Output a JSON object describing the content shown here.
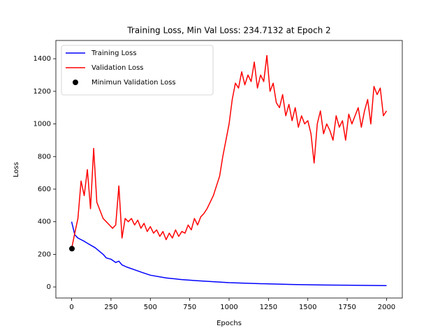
{
  "chart_data": {
    "type": "line",
    "title": "Training Loss, Min Val Loss: 234.7132 at Epoch 2",
    "xlabel": "Epochs",
    "ylabel": "Loss",
    "xlim": [
      -100,
      2100
    ],
    "ylim": [
      -68,
      1512
    ],
    "xticks": [
      0,
      250,
      500,
      750,
      1000,
      1250,
      1500,
      1750,
      2000
    ],
    "yticks": [
      0,
      200,
      400,
      600,
      800,
      1000,
      1200,
      1400
    ],
    "legend": "upper left",
    "series": [
      {
        "name": "Training Loss",
        "kind": "line",
        "color": "#0000ff",
        "x": [
          0,
          20,
          40,
          60,
          80,
          100,
          150,
          200,
          220,
          250,
          280,
          300,
          320,
          350,
          400,
          450,
          500,
          600,
          700,
          800,
          900,
          1000,
          1200,
          1400,
          1600,
          1800,
          2000
        ],
        "values": [
          400,
          320,
          300,
          290,
          280,
          268,
          240,
          200,
          178,
          170,
          150,
          158,
          135,
          122,
          105,
          88,
          72,
          55,
          45,
          38,
          32,
          26,
          20,
          15,
          12,
          10,
          8
        ]
      },
      {
        "name": "Validation Loss",
        "kind": "line",
        "color": "#ff0000",
        "x": [
          0,
          20,
          40,
          60,
          80,
          100,
          120,
          140,
          160,
          180,
          200,
          220,
          240,
          260,
          280,
          300,
          320,
          340,
          360,
          380,
          400,
          420,
          440,
          460,
          480,
          500,
          520,
          540,
          560,
          580,
          600,
          620,
          640,
          660,
          680,
          700,
          720,
          740,
          760,
          780,
          800,
          820,
          840,
          860,
          880,
          900,
          920,
          940,
          960,
          980,
          1000,
          1020,
          1040,
          1060,
          1080,
          1100,
          1120,
          1140,
          1160,
          1180,
          1200,
          1220,
          1240,
          1260,
          1280,
          1300,
          1320,
          1340,
          1360,
          1380,
          1400,
          1420,
          1440,
          1460,
          1480,
          1500,
          1520,
          1540,
          1560,
          1580,
          1600,
          1620,
          1640,
          1660,
          1680,
          1700,
          1720,
          1740,
          1760,
          1780,
          1800,
          1820,
          1840,
          1860,
          1880,
          1900,
          1920,
          1940,
          1960,
          1980,
          2000
        ],
        "values": [
          234,
          330,
          420,
          650,
          560,
          720,
          480,
          850,
          520,
          470,
          420,
          400,
          380,
          360,
          380,
          620,
          300,
          420,
          400,
          420,
          380,
          410,
          360,
          390,
          340,
          370,
          330,
          350,
          310,
          340,
          290,
          330,
          300,
          350,
          310,
          340,
          330,
          380,
          350,
          420,
          380,
          430,
          450,
          480,
          520,
          560,
          620,
          680,
          800,
          900,
          1000,
          1150,
          1250,
          1220,
          1320,
          1240,
          1300,
          1260,
          1380,
          1220,
          1300,
          1260,
          1420,
          1200,
          1250,
          1130,
          1100,
          1180,
          1050,
          1120,
          1020,
          1100,
          980,
          1050,
          1000,
          1020,
          940,
          760,
          1000,
          1080,
          940,
          1000,
          960,
          900,
          1050,
          980,
          1020,
          900,
          1060,
          1000,
          1050,
          1100,
          980,
          1080,
          1150,
          1000,
          1230,
          1180,
          1220,
          1050,
          1080
        ]
      },
      {
        "name": "Minimun Validation Loss",
        "kind": "scatter",
        "color": "#000000",
        "x": [
          2
        ],
        "values": [
          234.7132
        ]
      }
    ]
  }
}
